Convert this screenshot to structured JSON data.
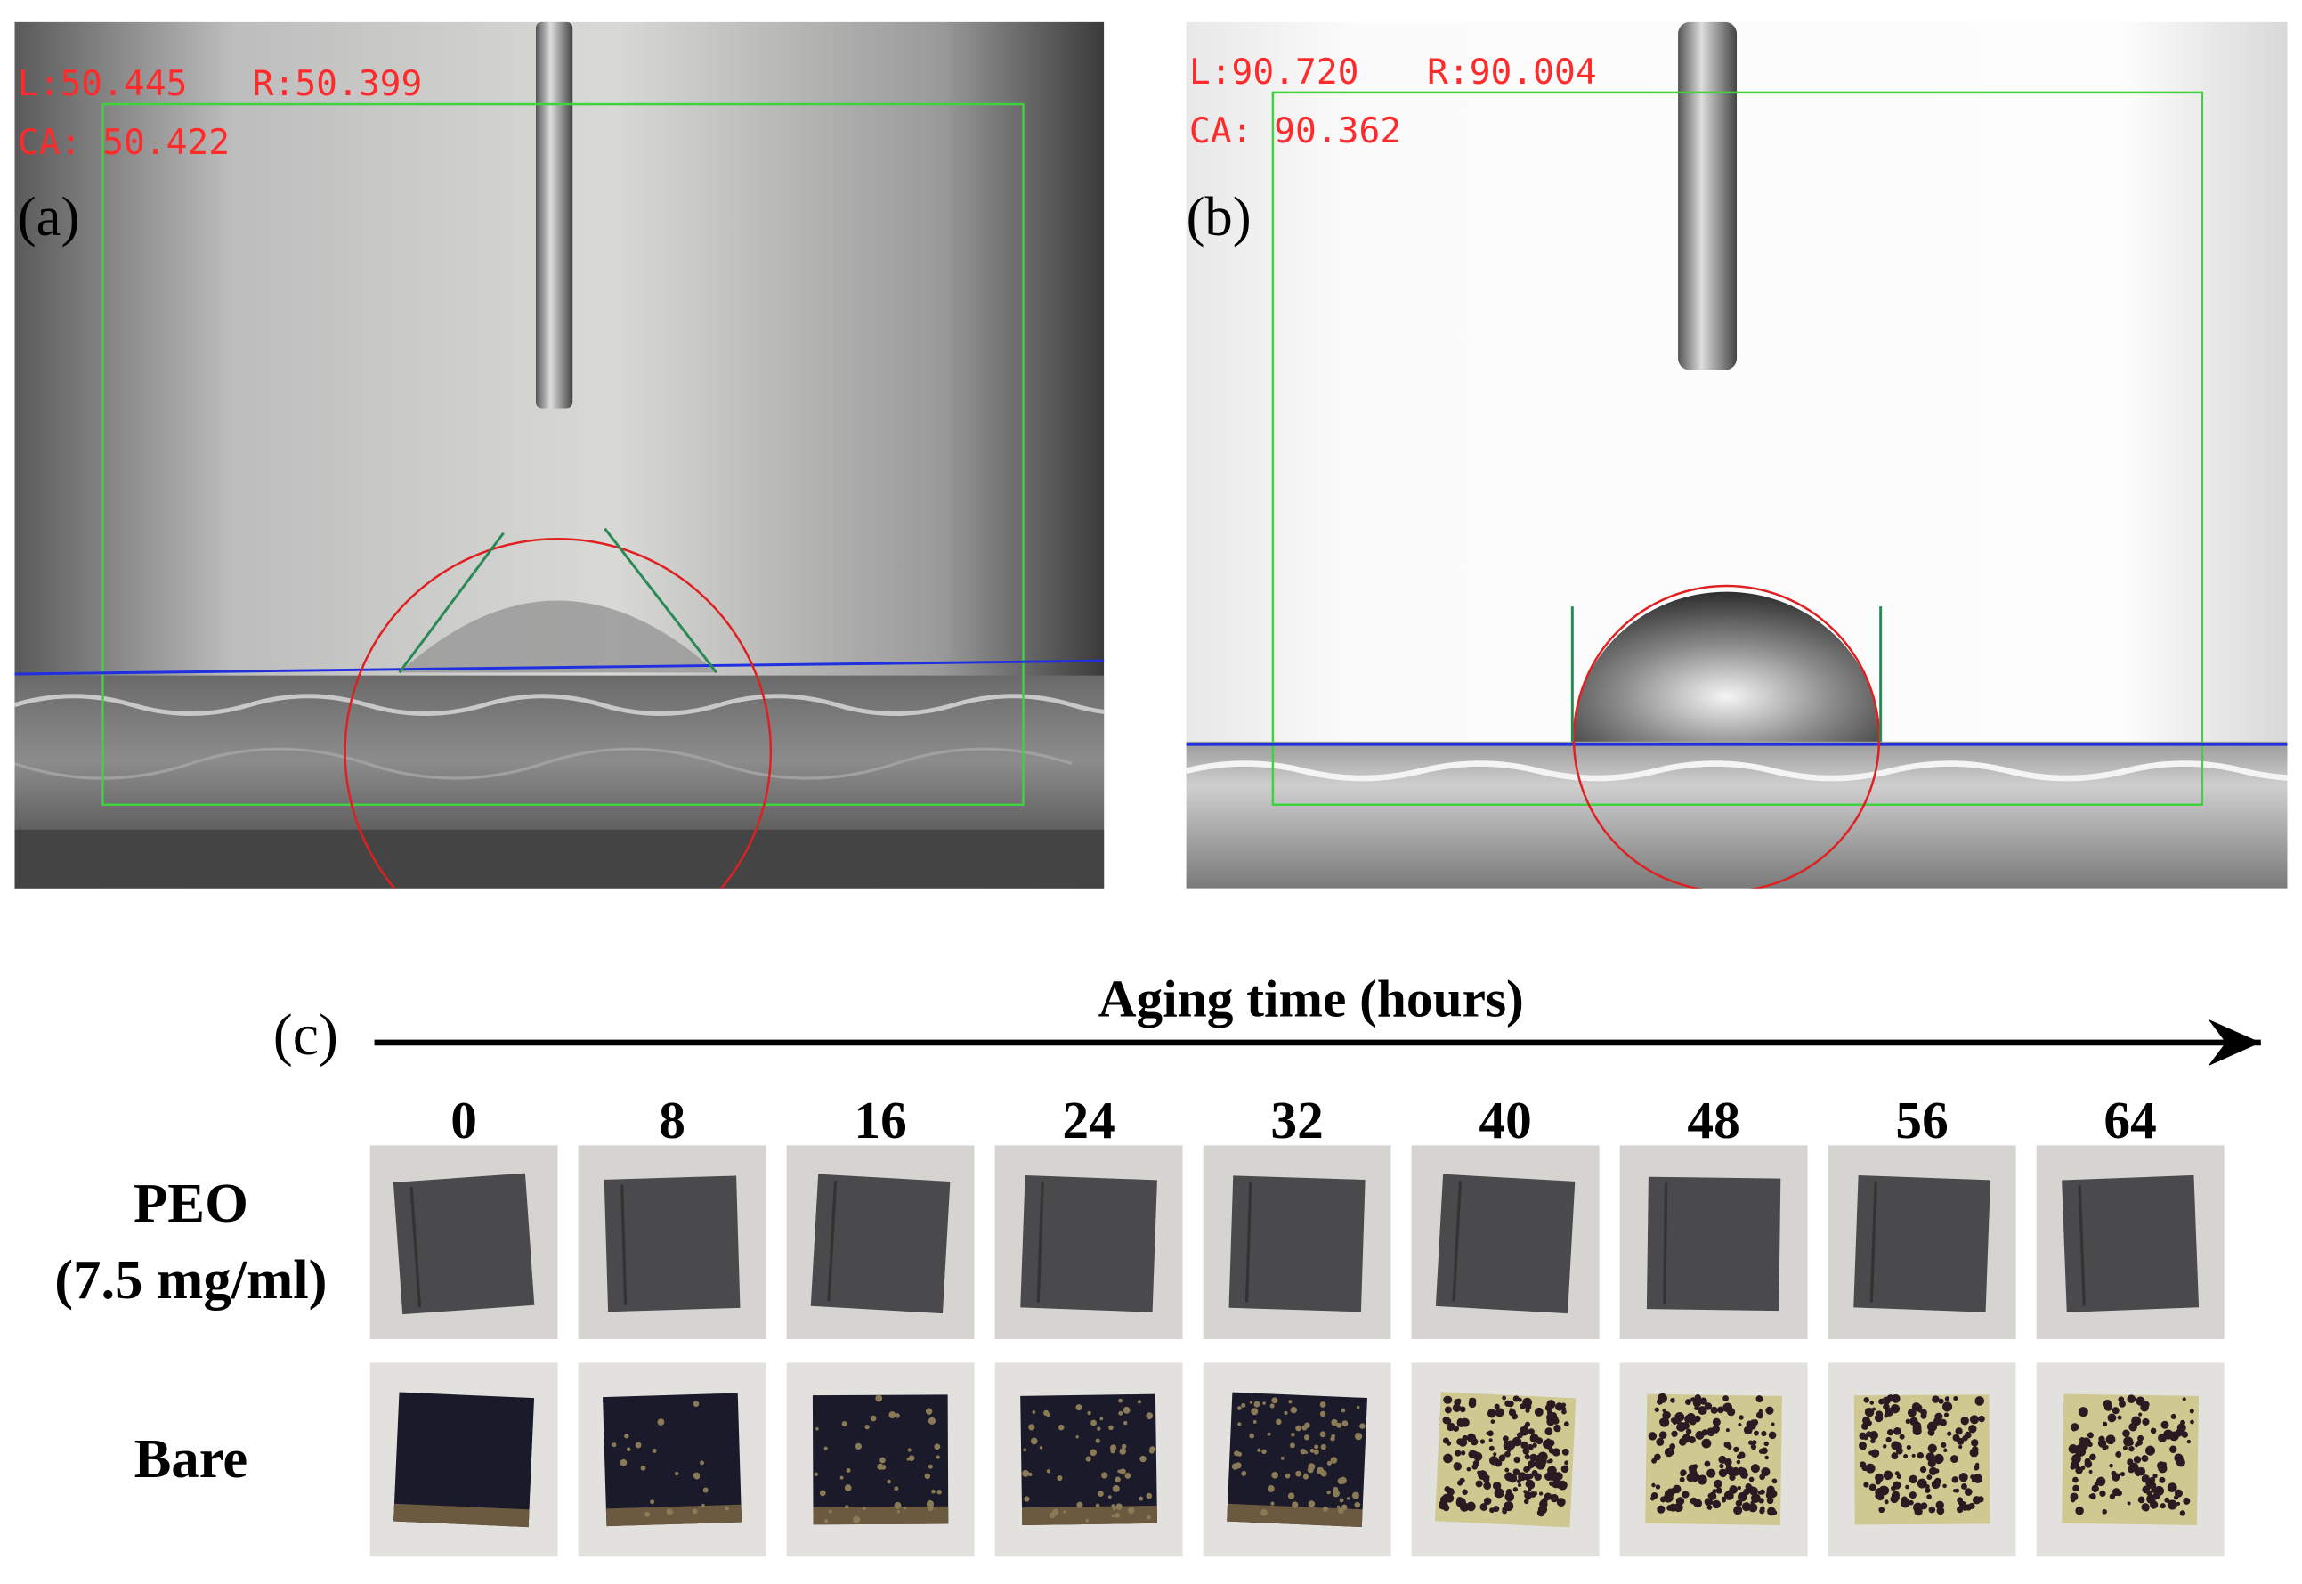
{
  "panels": [
    {
      "label": "(a)",
      "left": "L:50.445",
      "right": "R:50.399",
      "ca": "CA: 50.422"
    },
    {
      "label": "(b)",
      "left": "L:90.720",
      "right": "R:90.004",
      "ca": "CA: 90.362"
    }
  ],
  "aging": {
    "label": "(c)",
    "title": "Aging time (hours)",
    "times": [
      0,
      8,
      16,
      24,
      32,
      40,
      48,
      56,
      64
    ],
    "rows": [
      {
        "label": [
          "PEO",
          "(7.5 mg/ml)"
        ]
      },
      {
        "label": [
          "Bare"
        ]
      }
    ]
  }
}
